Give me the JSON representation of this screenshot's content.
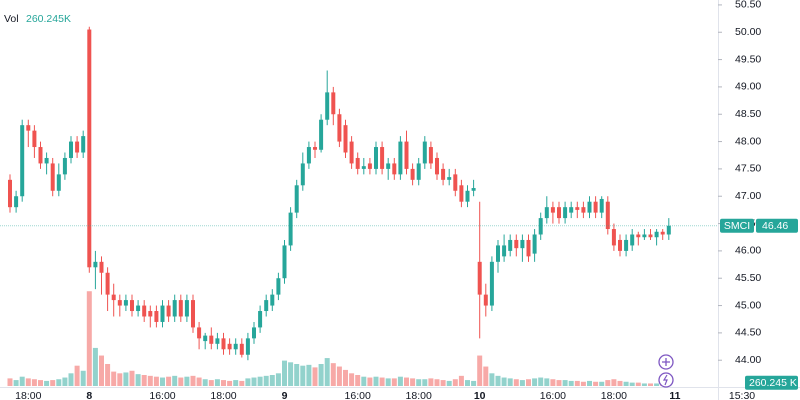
{
  "chart_data": {
    "type": "candlestick",
    "symbol": "SMCI",
    "volume_legend": "Vol",
    "volume_legend_value": "260.245K",
    "last_volume_label": "260.245 K",
    "up_color": "#26a69a",
    "down_color": "#ef5350",
    "volume_up_color": "rgba(38,166,154,0.5)",
    "volume_down_color": "rgba(239,83,80,0.5)",
    "grid": false,
    "ylim": [
      43.51,
      50.59
    ],
    "yticks": [
      {
        "value": 44,
        "label": "44.00"
      },
      {
        "value": 44.5,
        "label": "44.50"
      },
      {
        "value": 45,
        "label": "45.00"
      },
      {
        "value": 45.5,
        "label": "45.50"
      },
      {
        "value": 46,
        "label": "46.00"
      },
      {
        "value": 46.5,
        "label": "46.50"
      },
      {
        "value": 47,
        "label": "47.00"
      },
      {
        "value": 47.5,
        "label": "47.50"
      },
      {
        "value": 48,
        "label": "48.00"
      },
      {
        "value": 48.5,
        "label": "48.50"
      },
      {
        "value": 49,
        "label": "49.00"
      },
      {
        "value": 49.5,
        "label": "49.50"
      },
      {
        "value": 50,
        "label": "50.00"
      },
      {
        "value": 50.5,
        "label": "50.50"
      }
    ],
    "volume_ylim": [
      0,
      13000
    ],
    "categories": [
      null,
      null,
      null,
      "18:00",
      null,
      null,
      null,
      null,
      null,
      null,
      null,
      null,
      null,
      "8",
      null,
      null,
      null,
      null,
      null,
      null,
      null,
      null,
      null,
      null,
      null,
      "16:00",
      null,
      null,
      null,
      null,
      null,
      null,
      null,
      null,
      null,
      "18:00",
      null,
      null,
      null,
      null,
      null,
      null,
      null,
      null,
      null,
      "9",
      null,
      null,
      null,
      null,
      null,
      null,
      null,
      null,
      null,
      null,
      null,
      "16:00",
      null,
      null,
      null,
      null,
      null,
      null,
      null,
      null,
      null,
      "18:00",
      null,
      null,
      null,
      null,
      null,
      null,
      null,
      null,
      null,
      "10",
      null,
      null,
      null,
      null,
      null,
      null,
      null,
      null,
      null,
      null,
      null,
      "16:00",
      null,
      null,
      null,
      null,
      null,
      null,
      null,
      null,
      null,
      "18:00",
      null,
      null,
      null,
      null,
      null,
      null,
      null,
      null,
      null,
      "11",
      null,
      null,
      null,
      null,
      null,
      null,
      null,
      null,
      null,
      null,
      "15:30"
    ],
    "open": [
      47.3,
      46.8,
      47.0,
      48.3,
      48.2,
      47.9,
      47.6,
      47.6,
      47.1,
      47.4,
      47.7,
      48.0,
      47.8,
      50.05,
      45.7,
      45.8,
      45.6,
      45.2,
      45.1,
      45.0,
      45.1,
      44.9,
      45.0,
      44.9,
      44.9,
      44.7,
      45.0,
      44.8,
      45.1,
      44.8,
      45.1,
      44.6,
      44.35,
      44.45,
      44.3,
      44.4,
      44.3,
      44.2,
      44.3,
      44.1,
      44.4,
      44.6,
      44.9,
      45.0,
      45.2,
      45.5,
      46.1,
      46.7,
      47.2,
      47.6,
      47.9,
      47.85,
      48.4,
      48.9,
      48.5,
      48.3,
      48.0,
      47.7,
      47.5,
      47.6,
      47.5,
      47.9,
      47.5,
      47.6,
      47.4,
      48.0,
      47.5,
      47.3,
      47.6,
      47.9,
      47.7,
      47.5,
      47.3,
      47.4,
      47.2,
      46.9,
      47.1,
      45.8,
      45.2,
      45.0,
      45.8,
      45.9,
      46.0,
      46.2,
      46.05,
      46.2,
      45.95,
      46.3,
      46.6,
      46.8,
      46.8,
      46.6,
      46.7,
      46.8,
      46.8,
      46.7,
      46.9,
      46.7,
      46.9,
      46.4,
      46.2,
      46.0,
      46.1,
      46.3,
      46.25,
      46.3,
      46.25,
      46.35,
      46.3,
      null,
      null,
      null,
      null,
      null,
      null,
      null,
      null,
      null,
      null,
      null,
      null
    ],
    "high": [
      47.4,
      47.1,
      48.4,
      48.4,
      48.3,
      48.0,
      47.8,
      47.7,
      47.6,
      47.8,
      48.1,
      48.1,
      48.2,
      50.1,
      46.0,
      45.9,
      45.7,
      45.4,
      45.2,
      45.2,
      45.2,
      45.1,
      45.1,
      45.0,
      45.0,
      45.1,
      45.1,
      45.2,
      45.2,
      45.2,
      45.2,
      44.7,
      44.5,
      44.6,
      44.5,
      44.5,
      44.4,
      44.4,
      44.4,
      44.5,
      44.7,
      45.0,
      45.2,
      45.3,
      45.6,
      46.2,
      46.8,
      47.3,
      47.8,
      48.0,
      48.0,
      48.5,
      49.3,
      49.0,
      48.6,
      48.4,
      48.1,
      47.8,
      47.7,
      47.7,
      48.0,
      48.0,
      47.7,
      47.7,
      48.1,
      48.2,
      47.6,
      47.7,
      48.1,
      48.0,
      47.8,
      47.6,
      47.5,
      47.5,
      47.3,
      47.2,
      47.3,
      46.9,
      45.4,
      45.9,
      46.2,
      46.3,
      46.3,
      46.3,
      46.3,
      46.3,
      46.4,
      46.7,
      47.0,
      46.9,
      46.9,
      46.9,
      46.9,
      46.9,
      46.9,
      47.0,
      47.0,
      47.0,
      47.0,
      46.5,
      46.3,
      46.3,
      46.4,
      46.35,
      46.4,
      46.4,
      46.4,
      46.4,
      46.6,
      null,
      null,
      null,
      null,
      null,
      null,
      null,
      null,
      null,
      null,
      null,
      null
    ],
    "low": [
      46.7,
      46.7,
      46.9,
      47.9,
      47.7,
      47.5,
      47.4,
      47.0,
      47.0,
      47.3,
      47.6,
      47.7,
      47.7,
      45.6,
      45.3,
      45.2,
      44.9,
      44.8,
      44.8,
      44.9,
      44.8,
      44.8,
      44.7,
      44.6,
      44.6,
      44.6,
      44.7,
      44.7,
      44.7,
      44.7,
      44.5,
      44.2,
      44.2,
      44.2,
      44.2,
      44.1,
      44.1,
      44.1,
      44.05,
      44.0,
      44.3,
      44.5,
      44.8,
      44.9,
      45.1,
      45.4,
      46.0,
      46.6,
      47.1,
      47.5,
      47.7,
      47.8,
      48.3,
      48.3,
      47.9,
      47.7,
      47.5,
      47.4,
      47.4,
      47.4,
      47.4,
      47.4,
      47.3,
      47.3,
      47.3,
      47.4,
      47.2,
      47.2,
      47.5,
      47.5,
      47.3,
      47.2,
      47.2,
      47.0,
      46.8,
      46.8,
      47.0,
      44.4,
      44.8,
      44.9,
      45.6,
      45.8,
      45.9,
      45.9,
      45.8,
      45.8,
      45.8,
      46.2,
      46.5,
      46.5,
      46.5,
      46.5,
      46.6,
      46.6,
      46.6,
      46.6,
      46.6,
      46.6,
      46.3,
      46.0,
      45.9,
      45.9,
      46.0,
      46.1,
      46.2,
      46.2,
      46.1,
      46.2,
      46.2,
      null,
      null,
      null,
      null,
      null,
      null,
      null,
      null,
      null,
      null,
      null,
      null
    ],
    "close": [
      46.8,
      47.0,
      48.3,
      48.2,
      47.9,
      47.6,
      47.7,
      47.1,
      47.4,
      47.7,
      48.0,
      47.8,
      48.1,
      45.7,
      45.8,
      45.6,
      45.2,
      45.1,
      45.0,
      45.1,
      44.9,
      45.0,
      44.8,
      44.8,
      44.7,
      45.0,
      44.8,
      45.1,
      44.8,
      45.1,
      44.6,
      44.4,
      44.45,
      44.3,
      44.4,
      44.2,
      44.2,
      44.3,
      44.1,
      44.4,
      44.6,
      44.9,
      45.1,
      45.2,
      45.5,
      46.1,
      46.7,
      47.2,
      47.6,
      47.9,
      47.85,
      48.4,
      48.9,
      48.5,
      48.0,
      47.8,
      47.6,
      47.5,
      47.55,
      47.5,
      47.9,
      47.5,
      47.6,
      47.4,
      48.0,
      47.5,
      47.3,
      47.6,
      48.0,
      47.6,
      47.4,
      47.3,
      47.35,
      47.1,
      46.9,
      47.1,
      47.15,
      45.2,
      45.0,
      45.8,
      46.1,
      46.1,
      46.2,
      46.05,
      46.2,
      45.9,
      46.3,
      46.6,
      46.8,
      46.7,
      46.6,
      46.8,
      46.8,
      46.75,
      46.7,
      46.9,
      46.7,
      46.95,
      46.4,
      46.1,
      46.0,
      46.2,
      46.3,
      46.25,
      46.3,
      46.25,
      46.35,
      46.3,
      46.46,
      null,
      null,
      null,
      null,
      null,
      null,
      null,
      null,
      null,
      null,
      null,
      null
    ],
    "volume": [
      900,
      700,
      1100,
      900,
      800,
      700,
      600,
      700,
      800,
      1000,
      1500,
      2400,
      1800,
      11200,
      4500,
      3600,
      2600,
      1700,
      1500,
      1600,
      1800,
      1400,
      1300,
      1200,
      1100,
      1000,
      1100,
      1200,
      1000,
      1100,
      1200,
      1000,
      800,
      700,
      800,
      700,
      600,
      700,
      600,
      900,
      1000,
      1100,
      1200,
      1300,
      1500,
      3000,
      2800,
      2600,
      2400,
      2500,
      2200,
      2600,
      3300,
      2700,
      2300,
      1900,
      1500,
      1300,
      1100,
      1000,
      1100,
      1000,
      900,
      900,
      1100,
      1000,
      900,
      800,
      800,
      900,
      800,
      700,
      600,
      800,
      1200,
      700,
      600,
      3600,
      2300,
      1500,
      1200,
      1000,
      900,
      800,
      700,
      800,
      900,
      1000,
      900,
      800,
      700,
      700,
      600,
      600,
      500,
      600,
      500,
      500,
      700,
      800,
      600,
      500,
      400,
      400,
      300,
      300,
      300,
      300,
      260.245,
      null,
      null,
      null,
      null,
      null,
      null,
      null,
      null,
      null,
      null,
      null,
      null
    ]
  }
}
